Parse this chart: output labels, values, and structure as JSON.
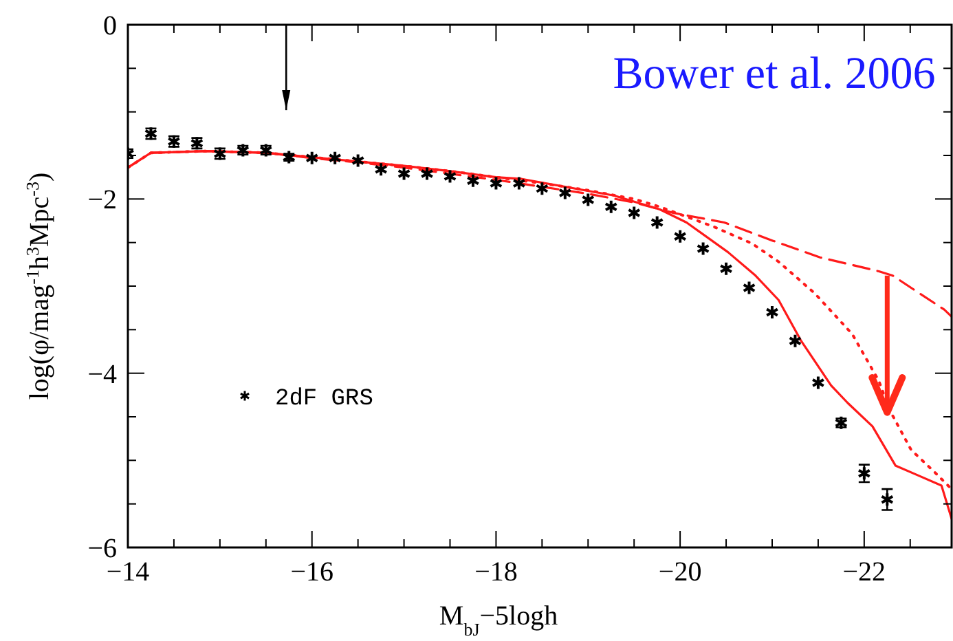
{
  "chart_data": {
    "type": "line",
    "title": "Bower et al. 2006",
    "xlabel": "M$_{bJ}$−5logh",
    "ylabel": "log(φ/mag$^{-1}$h$^{3}$Mpc$^{-3}$)",
    "xlim": [
      -14,
      -22.95
    ],
    "ylim": [
      -6,
      0
    ],
    "xticks": [
      -14,
      {
        "value": -14.5,
        "label": null
      },
      {
        "value": -15,
        "label": null
      },
      {
        "value": -15.5,
        "label": null
      },
      -16,
      {
        "value": -16.5,
        "label": null
      },
      {
        "value": -17,
        "label": null
      },
      {
        "value": -17.5,
        "label": null
      },
      -18,
      {
        "value": -18.5,
        "label": null
      },
      {
        "value": -19,
        "label": null
      },
      {
        "value": -19.5,
        "label": null
      },
      -20,
      {
        "value": -20.5,
        "label": null
      },
      {
        "value": -21,
        "label": null
      },
      {
        "value": -21.5,
        "label": null
      },
      -22,
      {
        "value": -22.5,
        "label": null
      }
    ],
    "yticks": [
      -6,
      {
        "value": -5.5,
        "label": null
      },
      {
        "value": -5,
        "label": null
      },
      {
        "value": -4.5,
        "label": null
      },
      -4,
      {
        "value": -3.5,
        "label": null
      },
      {
        "value": -3,
        "label": null
      },
      {
        "value": -2.5,
        "label": null
      },
      -2,
      {
        "value": -1.5,
        "label": null
      },
      {
        "value": -1,
        "label": null
      },
      {
        "value": -0.5,
        "label": null
      },
      0
    ],
    "legend": "bottom left",
    "series": [
      {
        "name": "2dF GRS",
        "type": "scatter",
        "marker": "cross",
        "color": "#000000",
        "x": [
          -14,
          -14.25,
          -14.5,
          -14.75,
          -15,
          -15.25,
          -15.5,
          -15.75,
          -16,
          -16.25,
          -16.5,
          -16.75,
          -17,
          -17.25,
          -17.5,
          -17.75,
          -18,
          -18.25,
          -18.5,
          -18.75,
          -19,
          -19.25,
          -19.5,
          -19.75,
          -20,
          -20.25,
          -20.5,
          -20.75,
          -21,
          -21.25,
          -21.5,
          -21.75,
          -22,
          -22.25
        ],
        "values": [
          -1.48,
          -1.25,
          -1.34,
          -1.36,
          -1.48,
          -1.44,
          -1.44,
          -1.52,
          -1.53,
          -1.53,
          -1.56,
          -1.66,
          -1.71,
          -1.71,
          -1.74,
          -1.79,
          -1.82,
          -1.82,
          -1.88,
          -1.93,
          -2.01,
          -2.09,
          -2.16,
          -2.27,
          -2.43,
          -2.57,
          -2.8,
          -3.02,
          -3.3,
          -3.63,
          -4.11,
          -4.57,
          -5.15,
          -5.45
        ],
        "errors": [
          0.05,
          0.06,
          0.06,
          0.06,
          0.06,
          0.05,
          0.05,
          0.04,
          null,
          null,
          null,
          null,
          null,
          null,
          null,
          null,
          null,
          null,
          null,
          null,
          null,
          null,
          null,
          null,
          null,
          null,
          null,
          null,
          null,
          null,
          null,
          0.05,
          0.1,
          0.12
        ]
      },
      {
        "line_style": "solid",
        "color": "#ff1a1a",
        "x": [
          -14,
          -14.25,
          -14.85,
          -15.5,
          -16,
          -16.5,
          -17,
          -17.5,
          -18,
          -18.28,
          -19.28,
          -19.78,
          -20.07,
          -20.52,
          -20.82,
          -21.07,
          -21.31,
          -21.64,
          -21.82,
          -22.09,
          -22.34,
          -22.58,
          -22.84,
          -22.95
        ],
        "values": [
          -1.64,
          -1.47,
          -1.45,
          -1.47,
          -1.52,
          -1.57,
          -1.62,
          -1.68,
          -1.75,
          -1.77,
          -1.96,
          -2.12,
          -2.27,
          -2.61,
          -2.88,
          -3.16,
          -3.62,
          -4.14,
          -4.34,
          -4.61,
          -5.06,
          -5.17,
          -5.29,
          -5.67
        ]
      },
      {
        "line_style": "dashed",
        "color": "#ff1a1a",
        "x": [
          -14,
          -14.25,
          -14.85,
          -15.5,
          -16,
          -16.5,
          -17,
          -17.5,
          -18,
          -18.5,
          -19,
          -19.5,
          -19.93,
          -20.48,
          -21.01,
          -21.52,
          -22.16,
          -22.31,
          -22.87,
          -22.95
        ],
        "values": [
          -1.64,
          -1.47,
          -1.45,
          -1.47,
          -1.53,
          -1.58,
          -1.64,
          -1.71,
          -1.78,
          -1.86,
          -1.94,
          -2.04,
          -2.16,
          -2.27,
          -2.48,
          -2.67,
          -2.83,
          -2.88,
          -3.27,
          -3.35
        ]
      },
      {
        "line_style": "dotted",
        "color": "#ff1a1a",
        "x": [
          -14,
          -14.25,
          -14.85,
          -15.5,
          -16,
          -16.5,
          -17,
          -17.5,
          -18,
          -18.5,
          -19,
          -19.5,
          -19.78,
          -20.37,
          -20.78,
          -21.07,
          -21.46,
          -21.87,
          -22.16,
          -22.27,
          -22.51,
          -22.76,
          -22.94
        ],
        "values": [
          -1.64,
          -1.47,
          -1.45,
          -1.47,
          -1.52,
          -1.57,
          -1.62,
          -1.68,
          -1.75,
          -1.82,
          -1.9,
          -2.0,
          -2.09,
          -2.32,
          -2.51,
          -2.72,
          -3.08,
          -3.55,
          -4.09,
          -4.41,
          -4.88,
          -5.13,
          -5.32
        ]
      }
    ]
  }
}
